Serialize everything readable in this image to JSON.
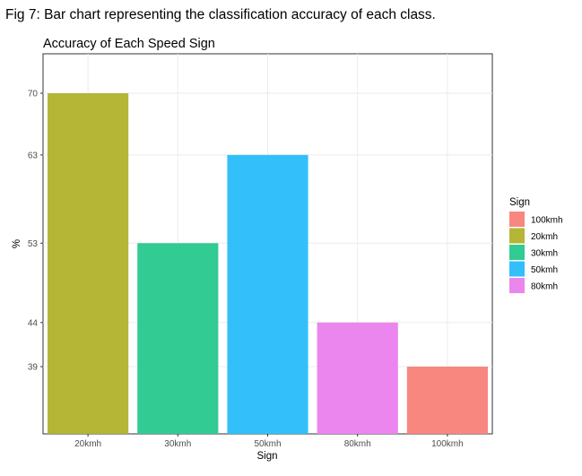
{
  "caption": "Fig 7: Bar chart representing the classification accuracy of each class.",
  "chart_data": {
    "type": "bar",
    "title": "Accuracy of Each Speed Sign",
    "xlabel": "Sign",
    "ylabel": "%",
    "categories": [
      "20kmh",
      "30kmh",
      "50kmh",
      "80kmh",
      "100kmh"
    ],
    "values": [
      70,
      53,
      63,
      44,
      39
    ],
    "colors": [
      "#b5b536",
      "#31cb93",
      "#33bff9",
      "#ea86ee",
      "#f8877f"
    ],
    "y_tick_labels": [
      "39",
      "44",
      "53",
      "63",
      "70"
    ],
    "grid": true,
    "legend": {
      "title": "Sign",
      "placement": "right",
      "items": [
        {
          "label": "100kmh",
          "color": "#f8877f"
        },
        {
          "label": "20kmh",
          "color": "#b5b536"
        },
        {
          "label": "30kmh",
          "color": "#31cb93"
        },
        {
          "label": "50kmh",
          "color": "#33bff9"
        },
        {
          "label": "80kmh",
          "color": "#ea86ee"
        }
      ]
    }
  }
}
